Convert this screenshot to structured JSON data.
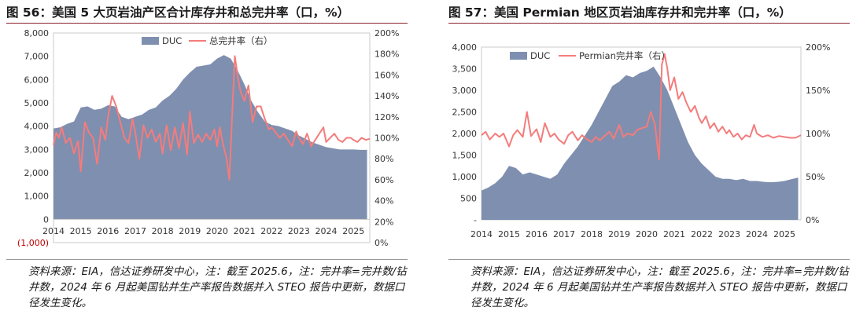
{
  "left": {
    "title": "图 56：美国 5 大页岩油产区合计库存井和总完井率（口，%）",
    "source": "资料来源：EIA，信达证券研发中心，注：截至 2025.6，注：完井率=完井数/钻井数，2024 年 6 月起美国钻井生产率报告数据并入 STEO 报告中更新，数据口径发生变化。",
    "chart_data": {
      "type": "area+line",
      "x_ticks": [
        "2014",
        "2015",
        "2016",
        "2017",
        "2018",
        "2019",
        "2020",
        "2021",
        "2022",
        "2023",
        "2024",
        "2025"
      ],
      "y_left_ticks": [
        "8,000",
        "7,000",
        "6,000",
        "5,000",
        "4,000",
        "3,000",
        "2,000",
        "1,000",
        "0",
        "(1,000)"
      ],
      "y_right_ticks": [
        "200%",
        "180%",
        "160%",
        "140%",
        "120%",
        "100%",
        "80%",
        "60%",
        "40%",
        "20%",
        "0%"
      ],
      "ylim_left": [
        -1000,
        8000
      ],
      "ylim_right": [
        0,
        200
      ],
      "xlim": [
        2014,
        2025.6
      ],
      "series": [
        {
          "name": "DUC",
          "kind": "area",
          "color": "#7f8faf",
          "x": [
            2014.0,
            2014.25,
            2014.5,
            2014.75,
            2015.0,
            2015.25,
            2015.5,
            2015.75,
            2016.0,
            2016.25,
            2016.5,
            2016.75,
            2017.0,
            2017.25,
            2017.5,
            2017.75,
            2018.0,
            2018.25,
            2018.5,
            2018.75,
            2019.0,
            2019.25,
            2019.5,
            2019.75,
            2020.0,
            2020.25,
            2020.5,
            2020.75,
            2021.0,
            2021.25,
            2021.5,
            2021.75,
            2022.0,
            2022.25,
            2022.5,
            2022.75,
            2023.0,
            2023.25,
            2023.5,
            2023.75,
            2024.0,
            2024.25,
            2024.5,
            2024.75,
            2025.0,
            2025.25,
            2025.5
          ],
          "values": [
            3900,
            3950,
            4100,
            4200,
            4800,
            4850,
            4700,
            4750,
            4900,
            4850,
            4400,
            4300,
            4400,
            4500,
            4700,
            4800,
            5100,
            5300,
            5600,
            6000,
            6300,
            6550,
            6600,
            6650,
            6900,
            7050,
            6900,
            6400,
            5800,
            5100,
            4600,
            4200,
            4050,
            4000,
            3900,
            3800,
            3600,
            3450,
            3300,
            3200,
            3100,
            3050,
            3000,
            3000,
            3000,
            2980,
            2980
          ]
        },
        {
          "name": "总完井率（右）",
          "kind": "line",
          "axis": "right",
          "color": "#f47c7c",
          "x": [
            2014.0,
            2014.1,
            2014.2,
            2014.3,
            2014.45,
            2014.6,
            2014.75,
            2014.9,
            2015.0,
            2015.15,
            2015.3,
            2015.45,
            2015.6,
            2015.75,
            2015.9,
            2016.0,
            2016.15,
            2016.3,
            2016.45,
            2016.6,
            2016.75,
            2016.9,
            2017.0,
            2017.15,
            2017.3,
            2017.45,
            2017.6,
            2017.75,
            2017.9,
            2018.0,
            2018.15,
            2018.3,
            2018.45,
            2018.6,
            2018.75,
            2018.9,
            2019.0,
            2019.15,
            2019.3,
            2019.45,
            2019.6,
            2019.75,
            2019.9,
            2020.0,
            2020.1,
            2020.2,
            2020.35,
            2020.45,
            2020.55,
            2020.65,
            2020.75,
            2020.85,
            2021.0,
            2021.15,
            2021.3,
            2021.45,
            2021.6,
            2021.75,
            2021.9,
            2022.0,
            2022.15,
            2022.3,
            2022.45,
            2022.6,
            2022.75,
            2022.9,
            2023.0,
            2023.15,
            2023.3,
            2023.45,
            2023.6,
            2023.75,
            2023.9,
            2024.0,
            2024.15,
            2024.3,
            2024.45,
            2024.6,
            2024.75,
            2024.9,
            2025.0,
            2025.15,
            2025.3,
            2025.45,
            2025.6
          ],
          "values": [
            93,
            105,
            100,
            110,
            95,
            100,
            85,
            97,
            68,
            115,
            105,
            100,
            75,
            110,
            98,
            120,
            140,
            130,
            115,
            100,
            95,
            118,
            105,
            80,
            112,
            100,
            108,
            96,
            104,
            85,
            112,
            88,
            110,
            90,
            114,
            84,
            125,
            95,
            103,
            96,
            104,
            98,
            108,
            92,
            110,
            96,
            80,
            60,
            120,
            178,
            160,
            145,
            135,
            150,
            115,
            130,
            130,
            118,
            108,
            110,
            105,
            100,
            104,
            98,
            92,
            106,
            100,
            94,
            104,
            92,
            98,
            104,
            110,
            96,
            100,
            104,
            98,
            96,
            100,
            100,
            98,
            96,
            100,
            98,
            99
          ]
        }
      ]
    }
  },
  "right": {
    "title": "图 57：美国 Permian 地区页岩油库存井和完井率（口，%）",
    "source": "资料来源：EIA，信达证券研发中心，注：截至 2025.6，注：完井率=完井数/钻井数，2024 年 6 月起美国钻井生产率报告数据并入 STEO 报告中更新，数据口径发生变化。",
    "chart_data": {
      "type": "area+line",
      "x_ticks": [
        "2014",
        "2015",
        "2016",
        "2017",
        "2018",
        "2019",
        "2020",
        "2021",
        "2022",
        "2023",
        "2024",
        "2025"
      ],
      "y_left_ticks": [
        "4,000",
        "3,500",
        "3,000",
        "2,500",
        "2,000",
        "1,500",
        "1,000",
        "500",
        "-"
      ],
      "y_right_ticks": [
        "200%",
        "150%",
        "100%",
        "50%",
        "0%"
      ],
      "ylim_left": [
        0,
        4000
      ],
      "ylim_right": [
        0,
        200
      ],
      "xlim": [
        2014,
        2025.6
      ],
      "series": [
        {
          "name": "DUC",
          "kind": "area",
          "color": "#7f8faf",
          "x": [
            2014.0,
            2014.25,
            2014.5,
            2014.75,
            2015.0,
            2015.25,
            2015.5,
            2015.75,
            2016.0,
            2016.25,
            2016.5,
            2016.75,
            2017.0,
            2017.25,
            2017.5,
            2017.75,
            2018.0,
            2018.25,
            2018.5,
            2018.75,
            2019.0,
            2019.25,
            2019.5,
            2019.75,
            2020.0,
            2020.25,
            2020.5,
            2020.75,
            2021.0,
            2021.25,
            2021.5,
            2021.75,
            2022.0,
            2022.25,
            2022.5,
            2022.75,
            2023.0,
            2023.25,
            2023.5,
            2023.75,
            2024.0,
            2024.25,
            2024.5,
            2024.75,
            2025.0,
            2025.25,
            2025.5
          ],
          "values": [
            680,
            750,
            850,
            1000,
            1250,
            1200,
            1050,
            1100,
            1050,
            1000,
            950,
            1050,
            1300,
            1500,
            1700,
            1950,
            2200,
            2500,
            2800,
            3100,
            3200,
            3350,
            3300,
            3400,
            3450,
            3550,
            3300,
            3000,
            2600,
            2200,
            1800,
            1500,
            1300,
            1150,
            1000,
            950,
            950,
            920,
            950,
            900,
            900,
            880,
            870,
            880,
            900,
            940,
            980
          ]
        },
        {
          "name": "Permian完井率（右）",
          "kind": "line",
          "axis": "right",
          "color": "#f47c7c",
          "x": [
            2014.0,
            2014.15,
            2014.3,
            2014.5,
            2014.65,
            2014.8,
            2015.0,
            2015.15,
            2015.3,
            2015.5,
            2015.65,
            2015.8,
            2016.0,
            2016.15,
            2016.3,
            2016.5,
            2016.65,
            2016.8,
            2017.0,
            2017.15,
            2017.3,
            2017.5,
            2017.65,
            2017.8,
            2018.0,
            2018.15,
            2018.3,
            2018.5,
            2018.65,
            2018.8,
            2019.0,
            2019.15,
            2019.3,
            2019.5,
            2019.65,
            2019.8,
            2020.0,
            2020.15,
            2020.3,
            2020.45,
            2020.55,
            2020.65,
            2020.75,
            2020.85,
            2021.0,
            2021.15,
            2021.3,
            2021.45,
            2021.6,
            2021.75,
            2021.9,
            2022.0,
            2022.15,
            2022.3,
            2022.45,
            2022.6,
            2022.75,
            2022.9,
            2023.0,
            2023.15,
            2023.3,
            2023.45,
            2023.6,
            2023.75,
            2023.9,
            2024.0,
            2024.2,
            2024.4,
            2024.6,
            2024.8,
            2025.0,
            2025.2,
            2025.4,
            2025.6
          ],
          "values": [
            98,
            102,
            93,
            100,
            96,
            100,
            85,
            98,
            104,
            96,
            125,
            97,
            105,
            90,
            112,
            96,
            100,
            93,
            88,
            98,
            102,
            92,
            98,
            94,
            90,
            96,
            92,
            98,
            102,
            94,
            110,
            96,
            100,
            98,
            104,
            106,
            108,
            125,
            110,
            70,
            180,
            192,
            175,
            150,
            165,
            140,
            148,
            135,
            125,
            132,
            118,
            112,
            120,
            106,
            112,
            102,
            108,
            100,
            104,
            96,
            100,
            93,
            98,
            96,
            110,
            100,
            96,
            98,
            95,
            97,
            96,
            95,
            95,
            98
          ]
        }
      ]
    }
  }
}
